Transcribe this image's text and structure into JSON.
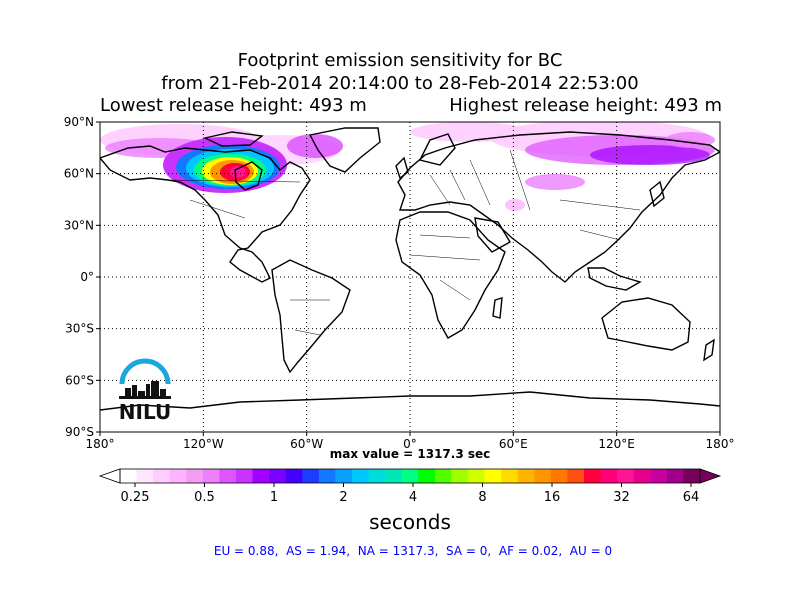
{
  "title": {
    "line1": "Footprint emission sensitivity for BC",
    "line2": "from 21-Feb-2014 20:14:00 to 28-Feb-2014 22:53:00",
    "lowest": "Lowest release height: 493 m",
    "highest": "Highest release height: 493 m"
  },
  "map": {
    "lat_ticks": [
      "90°N",
      "60°N",
      "30°N",
      "0°",
      "30°S",
      "60°S",
      "90°S"
    ],
    "lon_ticks": [
      "180°",
      "120°W",
      "60°W",
      "0°",
      "60°E",
      "120°E",
      "180°"
    ],
    "logo_text": "NILU"
  },
  "max_value": "max value = 1317.3 sec",
  "colorbar": {
    "ticks": [
      "0.25",
      "0.5",
      "1",
      "2",
      "4",
      "8",
      "16",
      "32",
      "64"
    ],
    "title": "seconds"
  },
  "stats": "EU = 0.88,  AS = 1.94,  NA = 1317.3,  SA = 0,  AF = 0.02,  AU = 0",
  "colors": {
    "colorbar": [
      "#ffffff",
      "#ffe6ff",
      "#ffccff",
      "#ffb3ff",
      "#f59cf5",
      "#ec80ff",
      "#dd55ff",
      "#c833ff",
      "#a300ff",
      "#7a00ff",
      "#4400ff",
      "#1e3cff",
      "#1478ff",
      "#0aa0ff",
      "#00c8ff",
      "#00dcdc",
      "#00e6b4",
      "#00ff80",
      "#00ff00",
      "#50ff00",
      "#a0ff00",
      "#d2ff00",
      "#ffff00",
      "#ffdc00",
      "#ffb400",
      "#ff9600",
      "#ff7800",
      "#ff5014",
      "#ff003c",
      "#ff0078",
      "#ff1493",
      "#e6008c",
      "#c800a0",
      "#a0008c",
      "#78005a"
    ],
    "stats": "#0000ff"
  }
}
